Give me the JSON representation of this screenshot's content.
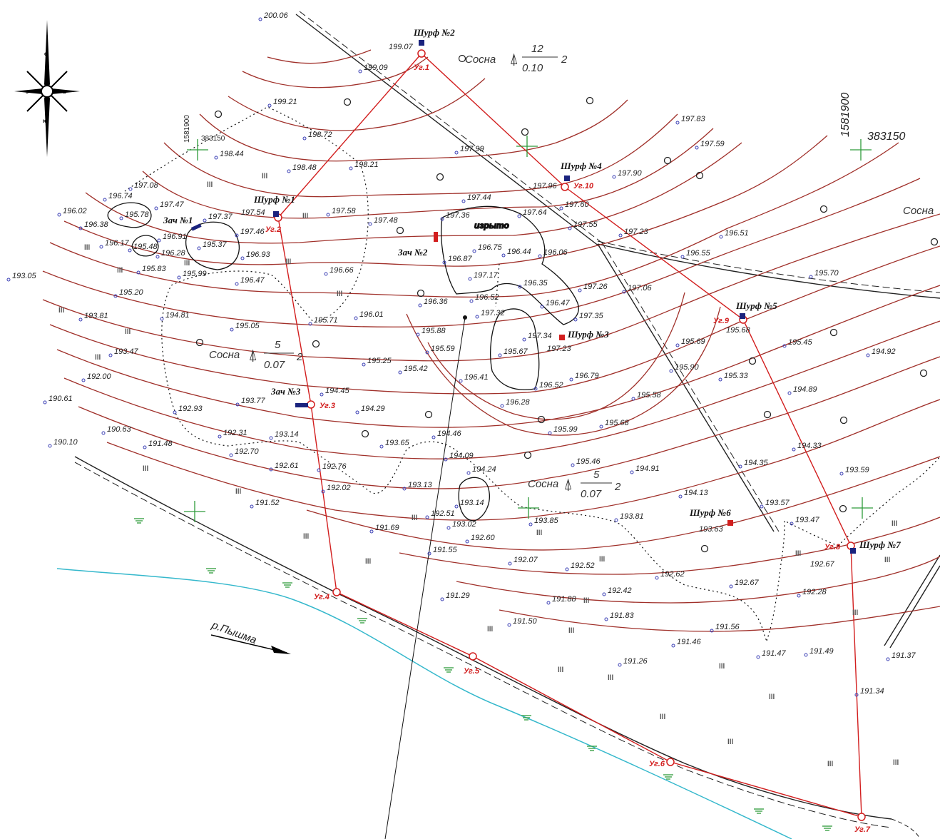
{
  "compass": {
    "n": "с",
    "w": "з",
    "e": "в",
    "s": "ю"
  },
  "grid_labels": {
    "x_big": "1581900",
    "y_big": "383150",
    "x_small": "1581900",
    "y_small": "383150"
  },
  "river": {
    "name": "р.Пышма"
  },
  "trees": [
    {
      "name": "Сосна",
      "height": "12",
      "diam": "0.10",
      "count": "2"
    },
    {
      "name": "Сосна",
      "height": "5",
      "diam": "0.07",
      "count": "2"
    },
    {
      "name": "Сосна",
      "height": "5",
      "diam": "0.07",
      "count": "2"
    },
    {
      "name": "Сосна"
    }
  ],
  "pits": [
    {
      "label": "Шурф №1",
      "elev": "197.54"
    },
    {
      "label": "Шурф №2",
      "elev": "199.07"
    },
    {
      "label": "Шурф №3",
      "elev": "197.23"
    },
    {
      "label": "Шурф №4",
      "elev": "197.96"
    },
    {
      "label": "Шурф №5",
      "elev": "195.68"
    },
    {
      "label": "Шурф №6",
      "elev": "193.63"
    },
    {
      "label": "Шурф №7",
      "elev": "192.67"
    },
    {
      "label": "Зач №1"
    },
    {
      "label": "Зач №2"
    },
    {
      "label": "Зач №3"
    }
  ],
  "angles": [
    "Уг.1",
    "Уг.2",
    "Уг.3",
    "Уг.4",
    "Уг.5",
    "Уг.6",
    "Уг.7",
    "Уг.8",
    "Уг.9",
    "Уг.10"
  ],
  "dug_label": "изрыто",
  "meadow_symbol": "lll",
  "elevations": [
    "200.06",
    "199.09",
    "199.21",
    "198.72",
    "198.44",
    "198.48",
    "198.21",
    "197.99",
    "197.83",
    "197.59",
    "197.90",
    "197.08",
    "196.74",
    "197.47",
    "197.37",
    "196.02",
    "195.78",
    "196.38",
    "196.91",
    "197.46",
    "197.58",
    "197.48",
    "197.44",
    "197.36",
    "197.64",
    "197.60",
    "197.55",
    "197.23",
    "196.51",
    "196.55",
    "196.17",
    "195.48",
    "196.28",
    "195.37",
    "196.93",
    "196.87",
    "196.75",
    "196.44",
    "196.06",
    "195.83",
    "195.99",
    "196.47",
    "196.66",
    "197.17",
    "196.35",
    "197.26",
    "197.06",
    "195.70",
    "193.05",
    "195.20",
    "194.81",
    "195.71",
    "196.01",
    "196.36",
    "196.52",
    "197.32",
    "196.47",
    "197.35",
    "193.81",
    "195.05",
    "195.88",
    "197.34",
    "193.47",
    "195.59",
    "195.67",
    "195.69",
    "195.45",
    "194.92",
    "195.25",
    "195.42",
    "196.41",
    "196.52",
    "196.79",
    "195.90",
    "195.33",
    "192.00",
    "190.61",
    "193.77",
    "194.45",
    "194.29",
    "196.28",
    "195.58",
    "194.89",
    "192.93",
    "190.63",
    "195.99",
    "195.68",
    "190.10",
    "191.48",
    "192.31",
    "193.14",
    "192.70",
    "194.46",
    "193.65",
    "194.09",
    "195.46",
    "194.33",
    "192.61",
    "192.76",
    "194.24",
    "194.91",
    "194.35",
    "193.59",
    "193.13",
    "192.02",
    "194.13",
    "193.57",
    "193.47",
    "191.52",
    "192.51",
    "193.14",
    "193.02",
    "193.85",
    "193.81",
    "191.69",
    "192.60",
    "191.55",
    "192.07",
    "192.52",
    "192.62",
    "192.67",
    "192.28",
    "191.29",
    "191.88",
    "192.42",
    "191.83",
    "191.50",
    "191.56",
    "191.46",
    "191.47",
    "191.49",
    "191.37",
    "191.26",
    "191.34"
  ]
}
